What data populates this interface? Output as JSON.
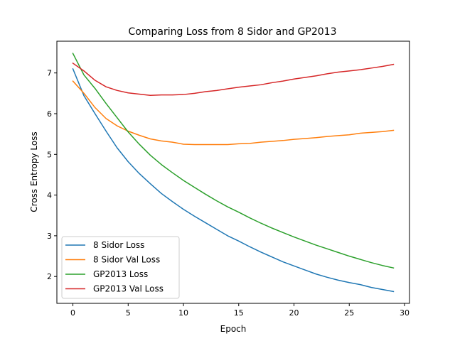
{
  "chart_data": {
    "type": "line",
    "title": "Comparing Loss from 8 Sidor and GP2013",
    "xlabel": "Epoch",
    "ylabel": "Cross Entropy Loss",
    "xlim": [
      -1.45,
      30.45
    ],
    "ylim": [
      1.34,
      7.78
    ],
    "xticks": [
      0,
      5,
      10,
      15,
      20,
      25,
      30
    ],
    "yticks": [
      2,
      3,
      4,
      5,
      6,
      7
    ],
    "grid": false,
    "legend_position": "lower-left",
    "x": [
      0,
      1,
      2,
      3,
      4,
      5,
      6,
      7,
      8,
      9,
      10,
      11,
      12,
      13,
      14,
      15,
      16,
      17,
      18,
      19,
      20,
      21,
      22,
      23,
      24,
      25,
      26,
      27,
      28,
      29
    ],
    "series": [
      {
        "name": "8 Sidor Loss",
        "color": "#1f77b4",
        "values": [
          7.1,
          6.44,
          6.0,
          5.57,
          5.16,
          4.82,
          4.53,
          4.28,
          4.04,
          3.84,
          3.65,
          3.48,
          3.32,
          3.16,
          3.0,
          2.87,
          2.73,
          2.6,
          2.48,
          2.36,
          2.26,
          2.16,
          2.06,
          1.98,
          1.91,
          1.85,
          1.8,
          1.73,
          1.68,
          1.63
        ]
      },
      {
        "name": "8 Sidor Val Loss",
        "color": "#ff7f0e",
        "values": [
          6.8,
          6.5,
          6.15,
          5.88,
          5.7,
          5.57,
          5.47,
          5.38,
          5.33,
          5.3,
          5.25,
          5.24,
          5.24,
          5.24,
          5.24,
          5.26,
          5.27,
          5.3,
          5.32,
          5.34,
          5.37,
          5.39,
          5.41,
          5.44,
          5.46,
          5.48,
          5.52,
          5.54,
          5.56,
          5.59
        ]
      },
      {
        "name": "GP2013 Loss",
        "color": "#2ca02c",
        "values": [
          7.48,
          6.95,
          6.62,
          6.25,
          5.9,
          5.55,
          5.25,
          4.98,
          4.75,
          4.55,
          4.36,
          4.19,
          4.02,
          3.86,
          3.71,
          3.58,
          3.44,
          3.31,
          3.19,
          3.08,
          2.97,
          2.87,
          2.77,
          2.68,
          2.59,
          2.5,
          2.42,
          2.34,
          2.27,
          2.21
        ]
      },
      {
        "name": "GP2013 Val Loss",
        "color": "#d62728",
        "values": [
          7.24,
          7.05,
          6.82,
          6.66,
          6.57,
          6.51,
          6.48,
          6.45,
          6.46,
          6.46,
          6.47,
          6.5,
          6.54,
          6.57,
          6.61,
          6.65,
          6.68,
          6.71,
          6.76,
          6.8,
          6.85,
          6.89,
          6.93,
          6.98,
          7.02,
          7.05,
          7.08,
          7.12,
          7.16,
          7.21
        ]
      }
    ]
  }
}
